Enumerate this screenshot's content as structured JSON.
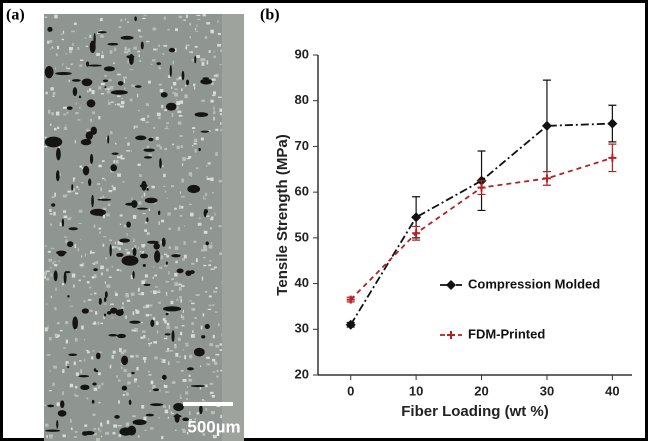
{
  "chart_data": {
    "type": "line",
    "panel_a_label": "(a)",
    "scale_bar_label": "500µm",
    "panel_b_label": "(b)",
    "x_label": "Fiber Loading (wt %)",
    "y_label": "Tensile Strength (MPa)",
    "x": [
      0,
      10,
      20,
      30,
      40
    ],
    "xlim": [
      -5,
      43
    ],
    "xticks": [
      0,
      10,
      20,
      30,
      40
    ],
    "ylim": [
      20,
      90
    ],
    "yticks": [
      20,
      30,
      40,
      50,
      60,
      70,
      80,
      90
    ],
    "legend": "right",
    "series": [
      {
        "name": "Compression Molded",
        "color": "#111111",
        "dash": "8 3 2 3",
        "marker": "diamond",
        "values": [
          31,
          54.5,
          62.5,
          74.5,
          75
        ],
        "errors": [
          0.5,
          4.5,
          6.5,
          10,
          4
        ]
      },
      {
        "name": "FDM-Printed",
        "color": "#b22222",
        "dash": "5 4",
        "marker": "plus",
        "values": [
          36.5,
          51,
          61,
          63,
          67.5
        ],
        "errors": [
          0.5,
          1.5,
          1.5,
          1.5,
          3
        ]
      }
    ]
  }
}
